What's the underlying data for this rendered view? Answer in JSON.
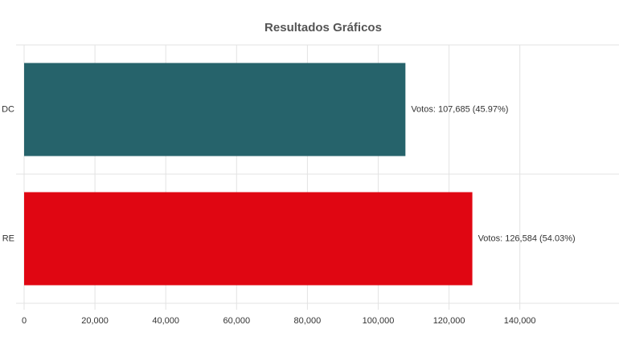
{
  "chart_data": {
    "type": "hbar",
    "title": "Resultados Gráficos",
    "categories": [
      "DC",
      "RE"
    ],
    "series": [
      {
        "values": [
          107685,
          126584
        ],
        "value_labels": [
          "Votos: 107,685 (45.97%)",
          "Votos: 126,584 (54.03%)"
        ],
        "colors": [
          "#26636b",
          "#e00612"
        ]
      }
    ],
    "xlim": [
      0,
      168000
    ],
    "xticks": [
      0,
      {
        "value": 20000,
        "label": "20,000"
      },
      {
        "value": 40000,
        "label": "40,000"
      },
      {
        "value": 60000,
        "label": "60,000"
      },
      {
        "value": 80000,
        "label": "80,000"
      },
      {
        "value": 100000,
        "label": "100,000"
      },
      {
        "value": 120000,
        "label": "120,000"
      },
      {
        "value": 140000,
        "label": "140,000"
      }
    ],
    "grid": true
  }
}
